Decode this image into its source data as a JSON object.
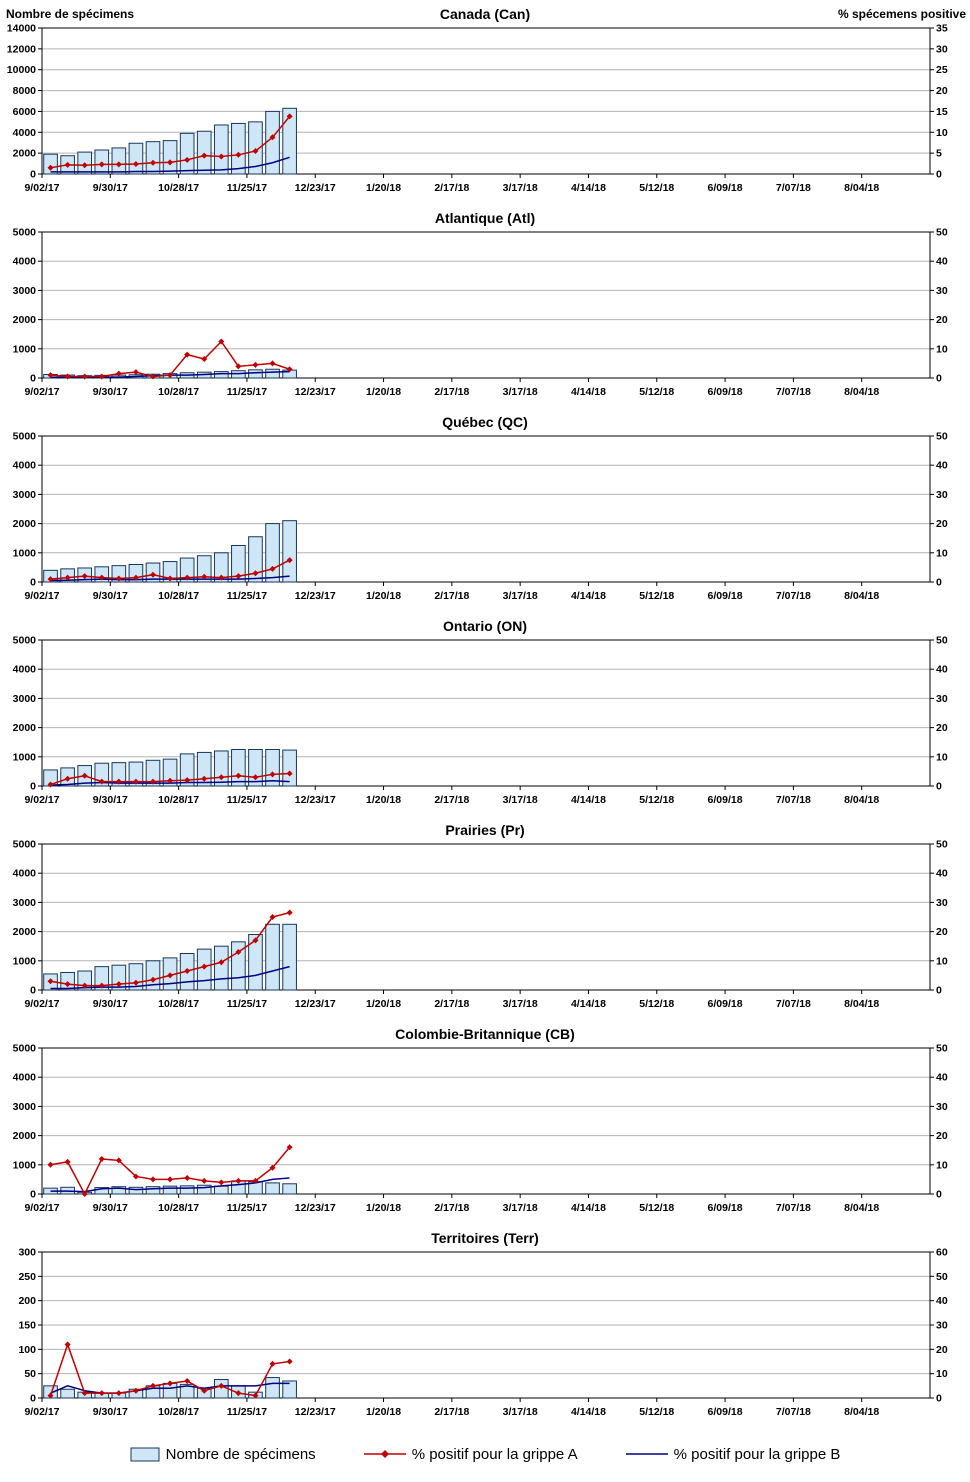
{
  "page": {
    "left_axis_title": "Nombre de spécimens",
    "right_axis_title": "% spécemens positive"
  },
  "colors": {
    "bar_fill": "#cfe6f7",
    "bar_border": "#17375e",
    "grippe_a": "#c00000",
    "grippe_b": "#000080",
    "grid": "#b3b3b3"
  },
  "weeks_total": 52,
  "x_tick_labels": [
    "9/02/17",
    "9/30/17",
    "10/28/17",
    "11/25/17",
    "12/23/17",
    "1/20/18",
    "2/17/18",
    "3/17/18",
    "4/14/18",
    "5/12/18",
    "6/09/18",
    "7/07/18",
    "8/04/18"
  ],
  "data_weeks": [
    "9/02/17",
    "9/09/17",
    "9/16/17",
    "9/23/17",
    "9/30/17",
    "10/07/17",
    "10/14/17",
    "10/21/17",
    "10/28/17",
    "11/04/17",
    "11/11/17",
    "11/18/17",
    "11/25/17",
    "12/02/17",
    "12/09/17"
  ],
  "legend": [
    {
      "label": "Nombre de spécimens",
      "type": "bar"
    },
    {
      "label": "% positif pour la grippe A",
      "type": "line-diamond"
    },
    {
      "label": "% positif pour la grippe B",
      "type": "line"
    }
  ],
  "chart_data": [
    {
      "type": "combo-bar-line",
      "title": "Canada (Can)",
      "left_axis": {
        "label": "Nombre de spécimens",
        "max": 14000,
        "ticks": [
          0,
          2000,
          4000,
          6000,
          8000,
          10000,
          12000,
          14000
        ]
      },
      "right_axis": {
        "label": "% spécemens positive",
        "max": 35,
        "ticks": [
          0,
          5,
          10,
          15,
          20,
          25,
          30,
          35
        ]
      },
      "series": [
        {
          "name": "Nombre de spécimens",
          "type": "bar",
          "axis": "left",
          "values": [
            1900,
            1750,
            2100,
            2300,
            2500,
            2950,
            3100,
            3200,
            3900,
            4100,
            4700,
            4850,
            5000,
            6000,
            6300
          ]
        },
        {
          "name": "% positif pour la grippe A",
          "type": "line",
          "axis": "right",
          "values": [
            1.5,
            2.2,
            2.1,
            2.3,
            2.3,
            2.4,
            2.7,
            2.8,
            3.4,
            4.4,
            4.2,
            4.6,
            5.5,
            8.8,
            13.8
          ]
        },
        {
          "name": "% positif pour la grippe B",
          "type": "line",
          "axis": "right",
          "values": [
            0.5,
            0.5,
            0.5,
            0.5,
            0.5,
            0.6,
            0.6,
            0.7,
            0.8,
            0.9,
            1.0,
            1.3,
            1.8,
            2.7,
            4.0
          ]
        }
      ]
    },
    {
      "type": "combo-bar-line",
      "title": "Atlantique (Atl)",
      "left_axis": {
        "label": "Nombre de spécimens",
        "max": 5000,
        "ticks": [
          0,
          1000,
          2000,
          3000,
          4000,
          5000
        ]
      },
      "right_axis": {
        "label": "% spécemens positive",
        "max": 50,
        "ticks": [
          0,
          10,
          20,
          30,
          40,
          50
        ]
      },
      "series": [
        {
          "name": "Nombre de spécimens",
          "type": "bar",
          "axis": "left",
          "values": [
            120,
            100,
            80,
            90,
            100,
            110,
            130,
            150,
            180,
            200,
            220,
            250,
            280,
            300,
            270
          ]
        },
        {
          "name": "% positif pour la grippe A",
          "type": "line",
          "axis": "right",
          "values": [
            1,
            0.5,
            0.5,
            0.5,
            1.5,
            2,
            0.5,
            1,
            8,
            6.5,
            12.5,
            4,
            4.5,
            5,
            3
          ]
        },
        {
          "name": "% positif pour la grippe B",
          "type": "line",
          "axis": "right",
          "values": [
            0.2,
            0.2,
            0.2,
            0.3,
            0.3,
            0.5,
            0.8,
            1,
            1,
            1.2,
            1.5,
            1.5,
            1.8,
            2,
            2.2
          ]
        }
      ]
    },
    {
      "type": "combo-bar-line",
      "title": "Québec (QC)",
      "left_axis": {
        "label": "Nombre de spécimens",
        "max": 5000,
        "ticks": [
          0,
          1000,
          2000,
          3000,
          4000,
          5000
        ]
      },
      "right_axis": {
        "label": "% spécemens positive",
        "max": 50,
        "ticks": [
          0,
          10,
          20,
          30,
          40,
          50
        ]
      },
      "series": [
        {
          "name": "Nombre de spécimens",
          "type": "bar",
          "axis": "left",
          "values": [
            400,
            450,
            480,
            520,
            560,
            600,
            650,
            700,
            820,
            900,
            1000,
            1250,
            1550,
            2000,
            2100
          ]
        },
        {
          "name": "% positif pour la grippe A",
          "type": "line",
          "axis": "right",
          "values": [
            1,
            1.5,
            2,
            1.5,
            1.2,
            1.5,
            2.5,
            1.2,
            1.5,
            1.8,
            1.5,
            2,
            3,
            4.5,
            7.5
          ]
        },
        {
          "name": "% positif pour la grippe B",
          "type": "line",
          "axis": "right",
          "values": [
            0.5,
            0.6,
            0.8,
            1,
            0.8,
            0.8,
            1,
            1,
            1,
            1,
            1,
            1,
            1.2,
            1.5,
            2
          ]
        }
      ]
    },
    {
      "type": "combo-bar-line",
      "title": "Ontario (ON)",
      "left_axis": {
        "label": "Nombre de spécimens",
        "max": 5000,
        "ticks": [
          0,
          1000,
          2000,
          3000,
          4000,
          5000
        ]
      },
      "right_axis": {
        "label": "% spécemens positive",
        "max": 50,
        "ticks": [
          0,
          10,
          20,
          30,
          40,
          50
        ]
      },
      "series": [
        {
          "name": "Nombre de spécimens",
          "type": "bar",
          "axis": "left",
          "values": [
            550,
            620,
            700,
            780,
            800,
            820,
            880,
            920,
            1100,
            1150,
            1200,
            1250,
            1250,
            1250,
            1230
          ]
        },
        {
          "name": "% positif pour la grippe A",
          "type": "line",
          "axis": "right",
          "values": [
            0.5,
            2.5,
            3.5,
            1.5,
            1.5,
            1.5,
            1.5,
            1.8,
            2,
            2.5,
            3,
            3.5,
            3,
            4,
            4.3
          ]
        },
        {
          "name": "% positif pour la grippe B",
          "type": "line",
          "axis": "right",
          "values": [
            0.3,
            0.5,
            1,
            1.2,
            1,
            1,
            1,
            1,
            1.2,
            1.2,
            1.3,
            1.5,
            1.5,
            1.8,
            1.5
          ]
        }
      ]
    },
    {
      "type": "combo-bar-line",
      "title": "Prairies (Pr)",
      "left_axis": {
        "label": "Nombre de spécimens",
        "max": 5000,
        "ticks": [
          0,
          1000,
          2000,
          3000,
          4000,
          5000
        ]
      },
      "right_axis": {
        "label": "% spécemens positive",
        "max": 50,
        "ticks": [
          0,
          10,
          20,
          30,
          40,
          50
        ]
      },
      "series": [
        {
          "name": "Nombre de spécimens",
          "type": "bar",
          "axis": "left",
          "values": [
            550,
            600,
            650,
            800,
            850,
            900,
            1000,
            1100,
            1250,
            1400,
            1500,
            1650,
            1900,
            2250,
            2250
          ]
        },
        {
          "name": "% positif pour la grippe A",
          "type": "line",
          "axis": "right",
          "values": [
            3,
            2,
            1.5,
            1.5,
            2,
            2.5,
            3.5,
            5,
            6.5,
            8,
            9.5,
            13,
            17,
            25,
            26.5
          ]
        },
        {
          "name": "% positif pour la grippe B",
          "type": "line",
          "axis": "right",
          "values": [
            0.5,
            0.5,
            0.8,
            1,
            1,
            1.2,
            1.8,
            2.2,
            2.8,
            3.2,
            3.8,
            4.2,
            5,
            6.5,
            8
          ]
        }
      ]
    },
    {
      "type": "combo-bar-line",
      "title": "Colombie-Britannique (CB)",
      "left_axis": {
        "label": "Nombre de spécimens",
        "max": 5000,
        "ticks": [
          0,
          1000,
          2000,
          3000,
          4000,
          5000
        ]
      },
      "right_axis": {
        "label": "% spécemens positive",
        "max": 50,
        "ticks": [
          0,
          10,
          20,
          30,
          40,
          50
        ]
      },
      "series": [
        {
          "name": "Nombre de spécimens",
          "type": "bar",
          "axis": "left",
          "values": [
            200,
            230,
            60,
            220,
            250,
            230,
            250,
            270,
            280,
            300,
            270,
            450,
            420,
            380,
            350
          ]
        },
        {
          "name": "% positif pour la grippe A",
          "type": "line",
          "axis": "right",
          "values": [
            10,
            11,
            0,
            12,
            11.5,
            6,
            5,
            5,
            5.5,
            4.5,
            4,
            4.5,
            4.5,
            9,
            16
          ]
        },
        {
          "name": "% positif pour la grippe B",
          "type": "line",
          "axis": "right",
          "values": [
            1,
            1,
            0.8,
            1.8,
            2,
            1.5,
            1.8,
            2,
            2,
            2.2,
            2.8,
            3.2,
            3.8,
            5,
            5.5
          ]
        }
      ]
    },
    {
      "type": "combo-bar-line",
      "title": "Territoires (Terr)",
      "left_axis": {
        "label": "Nombre de spécimens",
        "max": 300,
        "ticks": [
          0,
          50,
          100,
          150,
          200,
          250,
          300
        ]
      },
      "right_axis": {
        "label": "% spécemens positive",
        "max": 60,
        "ticks": [
          0,
          10,
          20,
          30,
          40,
          50,
          60
        ]
      },
      "series": [
        {
          "name": "Nombre de spécimens",
          "type": "bar",
          "axis": "left",
          "values": [
            25,
            18,
            12,
            10,
            10,
            18,
            25,
            30,
            28,
            20,
            38,
            25,
            12,
            42,
            35
          ]
        },
        {
          "name": "% positif pour la grippe A",
          "type": "line",
          "axis": "right",
          "values": [
            1,
            22,
            2,
            2,
            2,
            3,
            5,
            6,
            7,
            3,
            5,
            2,
            1,
            14,
            15
          ]
        },
        {
          "name": "% positif pour la grippe B",
          "type": "line",
          "axis": "right",
          "values": [
            2,
            5,
            3,
            2,
            2,
            3,
            4,
            4,
            5,
            4,
            5,
            5,
            5,
            6,
            6
          ]
        }
      ]
    }
  ]
}
